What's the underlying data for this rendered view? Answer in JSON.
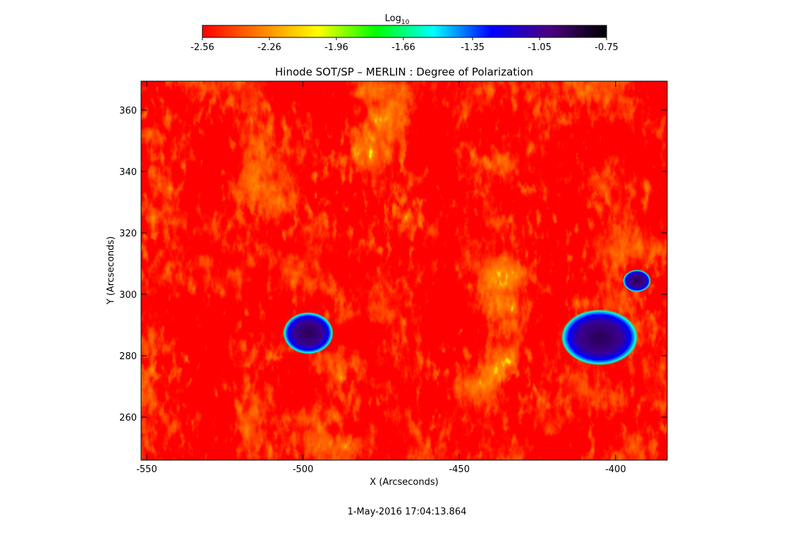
{
  "chart_data": {
    "type": "image",
    "title": "Hinode SOT/SP – MERLIN : Degree of Polarization",
    "x_label": "X (Arcseconds)",
    "y_label": "Y (Arcseconds)",
    "footer": "1-May-2016 17:04:13.864",
    "xlim": [
      -551.8,
      -383.5
    ],
    "ylim": [
      246.0,
      369.4
    ],
    "xticks": [
      -550,
      -500,
      -450,
      -400
    ],
    "yticks": [
      260,
      280,
      300,
      320,
      340,
      360
    ],
    "colorbar": {
      "label": "Log",
      "label_subscript": "10",
      "clim": [
        -2.56,
        -0.75
      ],
      "ticks": [
        -2.56,
        -2.26,
        -1.96,
        -1.66,
        -1.35,
        -1.05,
        -0.75
      ],
      "colors": [
        "#ff0000",
        "#ff8000",
        "#ffff00",
        "#00ff00",
        "#00ffff",
        "#0000ff",
        "#4b0082",
        "#000000"
      ]
    }
  }
}
